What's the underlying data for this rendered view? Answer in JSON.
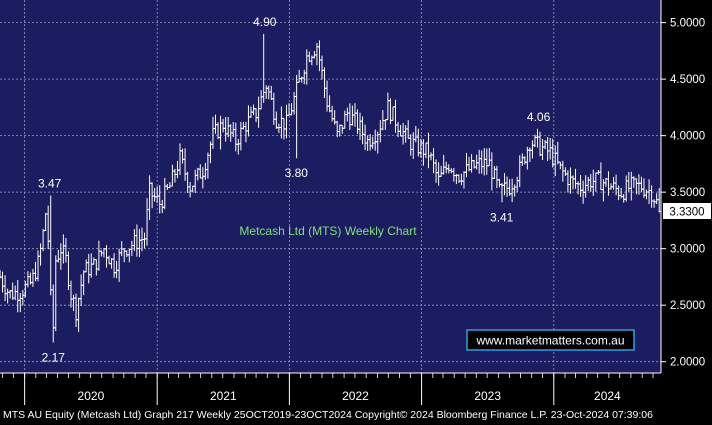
{
  "chart_data": {
    "type": "ohlc",
    "title": "Metcash Ltd (MTS) Weekly Chart",
    "watermark": "www.marketmatters.com.au",
    "ylim": [
      1.9,
      5.2
    ],
    "y_ticks": [
      "2.0000",
      "2.5000",
      "3.0000",
      "3.5000",
      "4.0000",
      "4.5000",
      "5.0000"
    ],
    "y_tick_values": [
      2.0,
      2.5,
      3.0,
      3.5,
      4.0,
      4.5,
      5.0
    ],
    "x_ticks": [
      "2020",
      "2021",
      "2022",
      "2023",
      "2024"
    ],
    "x_start": "2019-10-25",
    "x_end": "2024-10-23",
    "last_price": "3.3300",
    "last_price_value": 3.33,
    "annotations": [
      {
        "text": "3.47",
        "date": "2020-03-10",
        "value": 3.47,
        "pos": "above"
      },
      {
        "text": "2.17",
        "date": "2020-03-20",
        "value": 2.17,
        "pos": "below"
      },
      {
        "text": "4.90",
        "date": "2021-10-25",
        "value": 4.9,
        "pos": "above"
      },
      {
        "text": "3.80",
        "date": "2022-01-20",
        "value": 3.8,
        "pos": "below"
      },
      {
        "text": "3.41",
        "date": "2023-08-10",
        "value": 3.41,
        "pos": "below"
      },
      {
        "text": "4.06",
        "date": "2023-11-20",
        "value": 4.06,
        "pos": "above"
      }
    ],
    "weekly_close_path": [
      [
        "2019-10-25",
        2.75
      ],
      [
        "2019-11-20",
        2.6
      ],
      [
        "2019-12-20",
        2.62
      ],
      [
        "2020-01-20",
        2.7
      ],
      [
        "2020-02-10",
        2.9
      ],
      [
        "2020-02-24",
        3.2
      ],
      [
        "2020-03-02",
        3.4
      ],
      [
        "2020-03-12",
        2.6
      ],
      [
        "2020-03-20",
        2.3
      ],
      [
        "2020-03-27",
        2.9
      ],
      [
        "2020-04-10",
        3.0
      ],
      [
        "2020-04-24",
        2.9
      ],
      [
        "2020-05-08",
        2.6
      ],
      [
        "2020-05-22",
        2.45
      ],
      [
        "2020-06-12",
        2.8
      ],
      [
        "2020-07-10",
        2.85
      ],
      [
        "2020-08-07",
        3.0
      ],
      [
        "2020-09-04",
        2.85
      ],
      [
        "2020-10-02",
        3.0
      ],
      [
        "2020-10-30",
        3.05
      ],
      [
        "2020-11-27",
        3.1
      ],
      [
        "2020-12-11",
        3.5
      ],
      [
        "2021-01-08",
        3.4
      ],
      [
        "2021-02-05",
        3.55
      ],
      [
        "2021-03-05",
        3.8
      ],
      [
        "2021-04-02",
        3.55
      ],
      [
        "2021-05-07",
        3.7
      ],
      [
        "2021-06-04",
        4.0
      ],
      [
        "2021-07-02",
        4.1
      ],
      [
        "2021-08-06",
        3.95
      ],
      [
        "2021-09-03",
        4.1
      ],
      [
        "2021-10-01",
        4.2
      ],
      [
        "2021-10-29",
        4.45
      ],
      [
        "2021-11-26",
        4.15
      ],
      [
        "2021-12-24",
        4.1
      ],
      [
        "2022-01-21",
        4.4
      ],
      [
        "2022-02-18",
        4.7
      ],
      [
        "2022-03-18",
        4.8
      ],
      [
        "2022-04-15",
        4.3
      ],
      [
        "2022-05-13",
        4.0
      ],
      [
        "2022-06-10",
        4.2
      ],
      [
        "2022-07-08",
        4.1
      ],
      [
        "2022-08-05",
        3.95
      ],
      [
        "2022-09-02",
        4.05
      ],
      [
        "2022-09-30",
        4.25
      ],
      [
        "2022-10-28",
        4.1
      ],
      [
        "2022-11-25",
        3.95
      ],
      [
        "2022-12-23",
        3.9
      ],
      [
        "2023-01-20",
        3.85
      ],
      [
        "2023-02-17",
        3.6
      ],
      [
        "2023-03-17",
        3.75
      ],
      [
        "2023-04-14",
        3.65
      ],
      [
        "2023-05-12",
        3.7
      ],
      [
        "2023-06-09",
        3.75
      ],
      [
        "2023-07-07",
        3.75
      ],
      [
        "2023-08-04",
        3.5
      ],
      [
        "2023-09-01",
        3.55
      ],
      [
        "2023-09-29",
        3.7
      ],
      [
        "2023-10-27",
        3.95
      ],
      [
        "2023-11-24",
        3.9
      ],
      [
        "2023-12-22",
        3.85
      ],
      [
        "2024-01-19",
        3.7
      ],
      [
        "2024-02-16",
        3.6
      ],
      [
        "2024-03-15",
        3.55
      ],
      [
        "2024-04-12",
        3.6
      ],
      [
        "2024-05-10",
        3.6
      ],
      [
        "2024-06-07",
        3.55
      ],
      [
        "2024-07-05",
        3.5
      ],
      [
        "2024-08-02",
        3.55
      ],
      [
        "2024-08-30",
        3.55
      ],
      [
        "2024-09-27",
        3.5
      ],
      [
        "2024-10-23",
        3.33
      ]
    ]
  },
  "footer": {
    "text": "MTS AU Equity (Metcash Ltd) Graph 217  Weekly 25OCT2019-23OCT2024  Copyright© 2024 Bloomberg Finance L.P.  23-Oct-2024 07:39:06"
  },
  "colors": {
    "plot_bg": "#1c1c60",
    "grid": "#9a9ac8",
    "bars": "#ffffff",
    "title": "#7fe07f",
    "label_box": "#ffffff",
    "watermark_border": "#39c4ff"
  }
}
